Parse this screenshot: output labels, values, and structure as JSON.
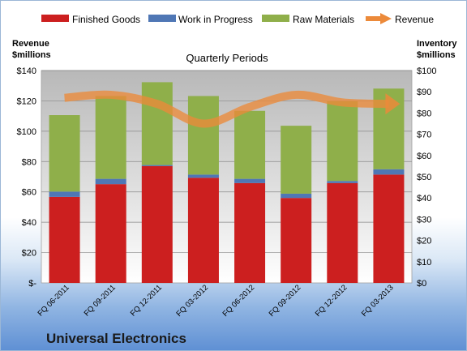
{
  "colors": {
    "finished": "#cc1f1f",
    "wip": "#4f77b5",
    "raw": "#8faf4a",
    "revenue": "#ec8a3a"
  },
  "chart_data": {
    "type": "bar",
    "stacked": true,
    "title": "Quarterly Periods",
    "company": "Universal Electronics",
    "y_left_label_line1": "Revenue",
    "y_left_label_line2": "$millions",
    "y_right_label_line1": "Inventory",
    "y_right_label_line2": "$millions",
    "categories": [
      "FQ 06-2011",
      "FQ 09-2011",
      "FQ 12-2011",
      "FQ 03-2012",
      "FQ 06-2012",
      "FQ 09-2012",
      "FQ 12-2012",
      "FQ 03-2013"
    ],
    "series": [
      {
        "name": "Finished Goods",
        "axis": "right",
        "values": [
          40.5,
          46.5,
          55,
          49.5,
          47,
          40,
          47,
          51
        ]
      },
      {
        "name": "Work in Progress",
        "axis": "right",
        "values": [
          2.5,
          2.5,
          0.5,
          1.5,
          2,
          2,
          1,
          2.5
        ]
      },
      {
        "name": "Raw Materials",
        "axis": "right",
        "values": [
          36,
          39,
          39,
          37,
          32,
          32,
          37.5,
          38
        ]
      },
      {
        "name": "Revenue",
        "axis": "left",
        "type": "line",
        "values": [
          122,
          124,
          118,
          105,
          116,
          124,
          119,
          118
        ]
      }
    ],
    "ylim_left": [
      0,
      140
    ],
    "ylim_right": [
      0,
      100
    ],
    "left_ticks": [
      "$-",
      "$20",
      "$40",
      "$60",
      "$80",
      "$100",
      "$120",
      "$140"
    ],
    "right_ticks": [
      "$0",
      "$10",
      "$20",
      "$30",
      "$40",
      "$50",
      "$60",
      "$70",
      "$80",
      "$90",
      "$100"
    ],
    "legend_position": "top",
    "grid": true
  }
}
